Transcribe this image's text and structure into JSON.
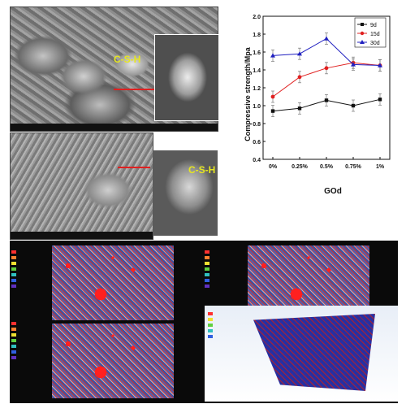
{
  "sem": {
    "label_top": "C-S-H",
    "label_bottom": "C-S-H"
  },
  "colors": {
    "s9d": "#111111",
    "s15d": "#e02020",
    "s30d": "#2020c0"
  },
  "chart_data": {
    "type": "line",
    "categories": [
      "0%",
      "0.25%",
      "0.5%",
      "0.75%",
      "1%"
    ],
    "xlabel": "GOd",
    "ylabel": "Compressive strength/Mpa",
    "ylim": [
      0.4,
      2.0
    ],
    "yticks": [
      "0.4",
      "0.6",
      "0.8",
      "1.0",
      "1.2",
      "1.4",
      "1.6",
      "1.8",
      "2.0"
    ],
    "legend_position": "top-right",
    "series": [
      {
        "name": "9d",
        "values": [
          0.94,
          0.97,
          1.06,
          1.0,
          1.07
        ],
        "marker": "square"
      },
      {
        "name": "15d",
        "values": [
          1.1,
          1.32,
          1.42,
          1.48,
          1.45
        ],
        "marker": "circle"
      },
      {
        "name": "30d",
        "values": [
          1.56,
          1.58,
          1.75,
          1.46,
          1.45
        ],
        "marker": "triangle"
      }
    ]
  }
}
